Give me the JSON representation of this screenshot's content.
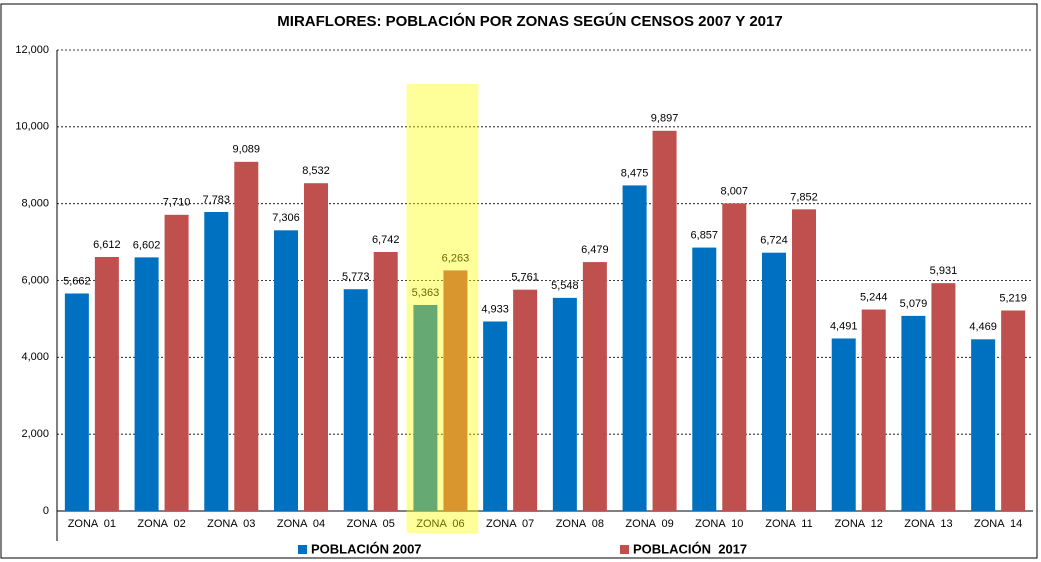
{
  "chart_data": {
    "type": "bar",
    "title": "MIRAFLORES: POBLACIÓN POR ZONAS SEGÚN CENSOS 2007 Y 2017",
    "categories": [
      "ZONA  01",
      "ZONA  02",
      "ZONA  03",
      "ZONA  04",
      "ZONA  05",
      "ZONA  06",
      "ZONA  07",
      "ZONA  08",
      "ZONA  09",
      "ZONA  10",
      "ZONA  11",
      "ZONA  12",
      "ZONA  13",
      "ZONA  14"
    ],
    "series": [
      {
        "name": "POBLACIÓN 2007",
        "color": "#0070c0",
        "values": [
          5662,
          6602,
          7783,
          7306,
          5773,
          5363,
          4933,
          5548,
          8475,
          6857,
          6724,
          4491,
          5079,
          4469
        ],
        "value_labels": [
          "5,662",
          "6,602",
          "7,783",
          "7,306",
          "5,773",
          "5,363",
          "4,933",
          "5,548",
          "8,475",
          "6,857",
          "6,724",
          "4,491",
          "5,079",
          "4,469"
        ]
      },
      {
        "name": "POBLACIÓN  2017",
        "color": "#c0504d",
        "values": [
          6612,
          7710,
          9089,
          8532,
          6742,
          6263,
          5761,
          6479,
          9897,
          8007,
          7852,
          5244,
          5931,
          5219
        ],
        "value_labels": [
          "6,612",
          "7,710",
          "9,089",
          "8,532",
          "6,742",
          "6,263",
          "5,761",
          "6,479",
          "9,897",
          "8,007",
          "7,852",
          "5,244",
          "5,931",
          "5,219"
        ]
      }
    ],
    "ylim": [
      0,
      12000
    ],
    "yticks": [
      0,
      {
        "value": 2000,
        "label": "2,000"
      },
      {
        "value": 4000,
        "label": "4,000"
      },
      {
        "value": 6000,
        "label": "6,000"
      },
      {
        "value": 8000,
        "label": "8,000"
      },
      {
        "value": 10000,
        "label": "10,000"
      },
      {
        "value": 12000,
        "label": "12,000"
      }
    ],
    "grid": true,
    "legend": "bottom",
    "highlight": 5
  }
}
